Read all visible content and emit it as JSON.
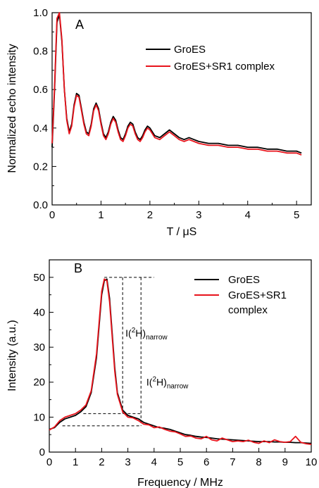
{
  "chart_data": [
    {
      "type": "line",
      "panel_label": "A",
      "xlabel": "T / μS",
      "ylabel": "Normalized echo intensity",
      "xlim": [
        0,
        5.3
      ],
      "ylim": [
        0,
        1.0
      ],
      "x_ticks": [
        "0",
        "1",
        "2",
        "3",
        "4",
        "5"
      ],
      "y_ticks": [
        "0.0",
        "0.2",
        "0.4",
        "0.6",
        "0.8",
        "1.0"
      ],
      "legend_position": "top-right",
      "grid": false,
      "series": [
        {
          "name": "GroES",
          "color": "#000000",
          "x": [
            0.0,
            0.05,
            0.1,
            0.15,
            0.2,
            0.25,
            0.3,
            0.35,
            0.4,
            0.45,
            0.5,
            0.55,
            0.6,
            0.65,
            0.7,
            0.75,
            0.8,
            0.85,
            0.9,
            0.95,
            1.0,
            1.05,
            1.1,
            1.15,
            1.2,
            1.25,
            1.3,
            1.35,
            1.4,
            1.45,
            1.5,
            1.55,
            1.6,
            1.65,
            1.7,
            1.75,
            1.8,
            1.85,
            1.9,
            1.95,
            2.0,
            2.1,
            2.2,
            2.3,
            2.4,
            2.5,
            2.6,
            2.7,
            2.8,
            2.9,
            3.0,
            3.2,
            3.4,
            3.6,
            3.8,
            4.0,
            4.2,
            4.4,
            4.6,
            4.8,
            5.0,
            5.1
          ],
          "values": [
            0.3,
            0.6,
            0.95,
            0.99,
            0.85,
            0.6,
            0.45,
            0.38,
            0.42,
            0.52,
            0.58,
            0.57,
            0.5,
            0.43,
            0.38,
            0.37,
            0.42,
            0.5,
            0.53,
            0.5,
            0.43,
            0.37,
            0.35,
            0.38,
            0.43,
            0.46,
            0.44,
            0.39,
            0.35,
            0.34,
            0.37,
            0.41,
            0.43,
            0.42,
            0.38,
            0.35,
            0.34,
            0.36,
            0.39,
            0.41,
            0.4,
            0.36,
            0.35,
            0.37,
            0.39,
            0.37,
            0.35,
            0.34,
            0.35,
            0.34,
            0.33,
            0.32,
            0.32,
            0.31,
            0.31,
            0.3,
            0.3,
            0.29,
            0.29,
            0.28,
            0.28,
            0.27
          ]
        },
        {
          "name": "GroES+SR1 complex",
          "color": "#e8141c",
          "x": [
            0.0,
            0.05,
            0.1,
            0.15,
            0.2,
            0.25,
            0.3,
            0.35,
            0.4,
            0.45,
            0.5,
            0.55,
            0.6,
            0.65,
            0.7,
            0.75,
            0.8,
            0.85,
            0.9,
            0.95,
            1.0,
            1.05,
            1.1,
            1.15,
            1.2,
            1.25,
            1.3,
            1.35,
            1.4,
            1.45,
            1.5,
            1.55,
            1.6,
            1.65,
            1.7,
            1.75,
            1.8,
            1.85,
            1.9,
            1.95,
            2.0,
            2.1,
            2.2,
            2.3,
            2.4,
            2.5,
            2.6,
            2.7,
            2.8,
            2.9,
            3.0,
            3.2,
            3.4,
            3.6,
            3.8,
            4.0,
            4.2,
            4.4,
            4.6,
            4.8,
            5.0,
            5.1
          ],
          "values": [
            0.32,
            0.62,
            0.97,
            1.0,
            0.86,
            0.6,
            0.44,
            0.37,
            0.41,
            0.51,
            0.57,
            0.56,
            0.49,
            0.42,
            0.37,
            0.36,
            0.41,
            0.49,
            0.52,
            0.49,
            0.42,
            0.36,
            0.34,
            0.37,
            0.42,
            0.45,
            0.43,
            0.38,
            0.34,
            0.33,
            0.36,
            0.4,
            0.42,
            0.41,
            0.37,
            0.34,
            0.33,
            0.35,
            0.38,
            0.4,
            0.39,
            0.35,
            0.34,
            0.36,
            0.38,
            0.36,
            0.34,
            0.33,
            0.34,
            0.33,
            0.32,
            0.31,
            0.31,
            0.3,
            0.3,
            0.29,
            0.29,
            0.28,
            0.28,
            0.27,
            0.27,
            0.26
          ]
        }
      ]
    },
    {
      "type": "line",
      "panel_label": "B",
      "xlabel": "Frequency / MHz",
      "ylabel": "Intensity (a.u.)",
      "xlim": [
        0,
        10
      ],
      "ylim": [
        0,
        55
      ],
      "x_ticks": [
        "0",
        "1",
        "2",
        "3",
        "4",
        "5",
        "6",
        "7",
        "8",
        "9",
        "10"
      ],
      "y_ticks": [
        "0",
        "10",
        "20",
        "30",
        "40",
        "50"
      ],
      "legend_position": "top-right",
      "grid": false,
      "annotations": [
        {
          "base": "I(",
          "sup": "2",
          "mid": "H)",
          "sub": "narrow",
          "x": 2.8,
          "y": 33
        },
        {
          "base": "I(",
          "sup": "2",
          "mid": "H)",
          "sub": "narrow",
          "x": 3.6,
          "y": 19
        }
      ],
      "reference_lines": {
        "peak_level": 50,
        "upper_base_level": 11,
        "lower_base_level": 7.5,
        "narrow_x": 2.8,
        "wide_x": 3.5,
        "upper_base_x_start": 1.3,
        "lower_base_x_start": 0.5,
        "line_x_end": 4.0
      },
      "series": [
        {
          "name": "GroES",
          "color": "#000000",
          "x": [
            0.0,
            0.2,
            0.4,
            0.6,
            0.8,
            1.0,
            1.2,
            1.4,
            1.6,
            1.8,
            1.9,
            2.0,
            2.1,
            2.2,
            2.3,
            2.4,
            2.5,
            2.6,
            2.8,
            3.0,
            3.2,
            3.4,
            3.6,
            3.8,
            4.0,
            4.2,
            4.4,
            4.6,
            4.8,
            5.0,
            5.2,
            5.4,
            5.6,
            5.8,
            6.0,
            6.2,
            6.4,
            6.6,
            6.8,
            7.0,
            7.2,
            7.4,
            7.6,
            7.8,
            8.0,
            8.2,
            8.4,
            8.6,
            8.8,
            9.0,
            9.2,
            9.4,
            9.6,
            9.8,
            10.0
          ],
          "values": [
            6.5,
            7.0,
            8.5,
            9.5,
            10.0,
            10.5,
            11.5,
            13.0,
            17.0,
            27.0,
            36.0,
            45.0,
            49.0,
            49.5,
            44.0,
            34.0,
            24.0,
            17.0,
            12.0,
            10.5,
            10.0,
            9.5,
            8.5,
            8.0,
            7.5,
            7.0,
            6.8,
            6.5,
            6.0,
            5.5,
            5.0,
            4.8,
            4.5,
            4.3,
            4.2,
            4.0,
            3.8,
            3.7,
            3.6,
            3.5,
            3.4,
            3.3,
            3.2,
            3.1,
            3.0,
            3.0,
            3.0,
            2.9,
            2.9,
            2.8,
            2.8,
            2.7,
            2.7,
            2.6,
            2.5
          ]
        },
        {
          "name": "GroES+SR1 complex",
          "color": "#e8141c",
          "x": [
            0.0,
            0.2,
            0.4,
            0.6,
            0.8,
            1.0,
            1.2,
            1.4,
            1.6,
            1.8,
            1.9,
            2.0,
            2.1,
            2.2,
            2.3,
            2.4,
            2.5,
            2.6,
            2.8,
            3.0,
            3.2,
            3.4,
            3.6,
            3.8,
            4.0,
            4.2,
            4.4,
            4.6,
            4.8,
            5.0,
            5.2,
            5.4,
            5.6,
            5.8,
            6.0,
            6.2,
            6.4,
            6.6,
            6.8,
            7.0,
            7.2,
            7.4,
            7.6,
            7.8,
            8.0,
            8.2,
            8.4,
            8.6,
            8.8,
            9.0,
            9.2,
            9.4,
            9.6,
            9.8,
            10.0
          ],
          "values": [
            6.3,
            7.2,
            9.0,
            10.0,
            10.5,
            11.0,
            12.0,
            13.5,
            17.5,
            28.0,
            37.0,
            46.0,
            49.5,
            49.0,
            43.0,
            33.0,
            23.0,
            16.5,
            11.5,
            10.0,
            9.8,
            9.0,
            8.0,
            7.8,
            7.0,
            7.2,
            6.5,
            6.0,
            5.8,
            5.2,
            4.5,
            4.6,
            4.0,
            3.8,
            4.5,
            3.5,
            3.2,
            4.0,
            3.5,
            3.0,
            3.2,
            3.0,
            3.4,
            2.8,
            2.5,
            3.2,
            2.7,
            3.5,
            3.0,
            2.8,
            3.0,
            4.5,
            2.8,
            2.4,
            2.2
          ]
        }
      ]
    }
  ]
}
